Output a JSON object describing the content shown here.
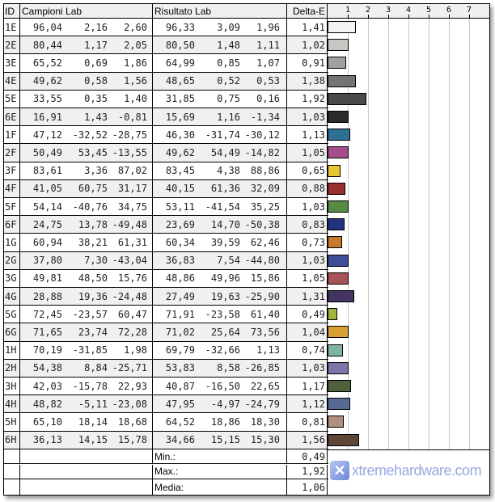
{
  "header": {
    "id": "ID",
    "campioni": "Campioni Lab",
    "risultato": "Risultato Lab",
    "delta": "Delta-E",
    "ticks": [
      "1",
      "2",
      "3",
      "4",
      "5",
      "6",
      "7"
    ]
  },
  "chart_data": {
    "type": "bar",
    "orientation": "horizontal",
    "xlim": [
      0,
      8
    ],
    "grid": true
  },
  "rows": [
    {
      "id": "1E",
      "c": [
        "96,04",
        "2,16",
        "2,60"
      ],
      "r": [
        "96,33",
        "3,09",
        "1,96"
      ],
      "de": "1,41",
      "v": 1.41,
      "color": "#f5f3f1"
    },
    {
      "id": "2E",
      "c": [
        "80,44",
        "1,17",
        "2,05"
      ],
      "r": [
        "80,50",
        "1,48",
        "1,11"
      ],
      "de": "1,02",
      "v": 1.02,
      "color": "#c8c6c3"
    },
    {
      "id": "3E",
      "c": [
        "65,52",
        "0,69",
        "1,86"
      ],
      "r": [
        "64,99",
        "0,85",
        "1,07"
      ],
      "de": "0,91",
      "v": 0.91,
      "color": "#a0a09f"
    },
    {
      "id": "4E",
      "c": [
        "49,62",
        "0,58",
        "1,56"
      ],
      "r": [
        "48,65",
        "0,52",
        "0,53"
      ],
      "de": "1,38",
      "v": 1.38,
      "color": "#747474"
    },
    {
      "id": "5E",
      "c": [
        "33,55",
        "0,35",
        "1,40"
      ],
      "r": [
        "31,85",
        "0,75",
        "0,16"
      ],
      "de": "1,92",
      "v": 1.92,
      "color": "#4a4a4a"
    },
    {
      "id": "6E",
      "c": [
        "16,91",
        "1,43",
        "-0,81"
      ],
      "r": [
        "15,69",
        "1,16",
        "-1,34"
      ],
      "de": "1,03",
      "v": 1.03,
      "color": "#2b2b2b"
    },
    {
      "id": "1F",
      "c": [
        "47,12",
        "-32,52",
        "-28,75"
      ],
      "r": [
        "46,30",
        "-31,74",
        "-30,12"
      ],
      "de": "1,13",
      "v": 1.13,
      "color": "#2c7096"
    },
    {
      "id": "2F",
      "c": [
        "50,49",
        "53,45",
        "-13,55"
      ],
      "r": [
        "49,62",
        "54,49",
        "-14,82"
      ],
      "de": "1,05",
      "v": 1.05,
      "color": "#a44d8a"
    },
    {
      "id": "3F",
      "c": [
        "83,61",
        "3,36",
        "87,02"
      ],
      "r": [
        "83,45",
        "4,38",
        "88,86"
      ],
      "de": "0,65",
      "v": 0.65,
      "color": "#e8c832"
    },
    {
      "id": "4F",
      "c": [
        "41,05",
        "60,75",
        "31,17"
      ],
      "r": [
        "40,15",
        "61,36",
        "32,09"
      ],
      "de": "0,88",
      "v": 0.88,
      "color": "#9a2f30"
    },
    {
      "id": "5F",
      "c": [
        "54,14",
        "-40,76",
        "34,75"
      ],
      "r": [
        "53,11",
        "-41,54",
        "35,25"
      ],
      "de": "1,03",
      "v": 1.03,
      "color": "#578a43"
    },
    {
      "id": "6F",
      "c": [
        "24,75",
        "13,78",
        "-49,48"
      ],
      "r": [
        "23,69",
        "14,70",
        "-50,38"
      ],
      "de": "0,83",
      "v": 0.83,
      "color": "#22327e"
    },
    {
      "id": "1G",
      "c": [
        "60,94",
        "38,21",
        "61,31"
      ],
      "r": [
        "60,34",
        "39,59",
        "62,46"
      ],
      "de": "0,73",
      "v": 0.73,
      "color": "#c77a2f"
    },
    {
      "id": "2G",
      "c": [
        "37,80",
        "7,30",
        "-43,04"
      ],
      "r": [
        "36,83",
        "7,54",
        "-44,80"
      ],
      "de": "1,03",
      "v": 1.03,
      "color": "#3e4f98"
    },
    {
      "id": "3G",
      "c": [
        "49,81",
        "48,50",
        "15,76"
      ],
      "r": [
        "48,86",
        "49,96",
        "15,86"
      ],
      "de": "1,05",
      "v": 1.05,
      "color": "#a8525a"
    },
    {
      "id": "4G",
      "c": [
        "28,88",
        "19,36",
        "-24,48"
      ],
      "r": [
        "27,49",
        "19,63",
        "-25,90"
      ],
      "de": "1,31",
      "v": 1.31,
      "color": "#443462"
    },
    {
      "id": "5G",
      "c": [
        "72,45",
        "-23,57",
        "60,47"
      ],
      "r": [
        "71,91",
        "-23,58",
        "61,40"
      ],
      "de": "0,49",
      "v": 0.49,
      "color": "#a2b340"
    },
    {
      "id": "6G",
      "c": [
        "71,65",
        "23,74",
        "72,28"
      ],
      "r": [
        "71,02",
        "25,64",
        "73,56"
      ],
      "de": "1,04",
      "v": 1.04,
      "color": "#d89f33"
    },
    {
      "id": "1H",
      "c": [
        "70,19",
        "-31,85",
        "1,98"
      ],
      "r": [
        "69,79",
        "-32,66",
        "1,13"
      ],
      "de": "0,74",
      "v": 0.74,
      "color": "#7db3a0"
    },
    {
      "id": "2H",
      "c": [
        "54,38",
        "8,84",
        "-25,71"
      ],
      "r": [
        "53,83",
        "8,58",
        "-26,85"
      ],
      "de": "1,03",
      "v": 1.03,
      "color": "#7a77a8"
    },
    {
      "id": "3H",
      "c": [
        "42,03",
        "-15,78",
        "22,93"
      ],
      "r": [
        "40,87",
        "-16,50",
        "22,65"
      ],
      "de": "1,17",
      "v": 1.17,
      "color": "#4f613a"
    },
    {
      "id": "4H",
      "c": [
        "48,82",
        "-5,11",
        "-23,08"
      ],
      "r": [
        "47,95",
        "-4,97",
        "-24,79"
      ],
      "de": "1,12",
      "v": 1.12,
      "color": "#566a94"
    },
    {
      "id": "5H",
      "c": [
        "65,10",
        "18,14",
        "18,68"
      ],
      "r": [
        "64,52",
        "18,86",
        "18,30"
      ],
      "de": "0,81",
      "v": 0.81,
      "color": "#b38d7d"
    },
    {
      "id": "6H",
      "c": [
        "36,13",
        "14,15",
        "15,78"
      ],
      "r": [
        "34,66",
        "15,15",
        "15,30"
      ],
      "de": "1,56",
      "v": 1.56,
      "color": "#5e4738"
    }
  ],
  "summary": [
    {
      "label": "Min.:",
      "value": "0,49"
    },
    {
      "label": "Max.:",
      "value": "1,92"
    },
    {
      "label": "Media:",
      "value": "1,06"
    }
  ],
  "watermark": {
    "text": "xtremehardware.com"
  }
}
